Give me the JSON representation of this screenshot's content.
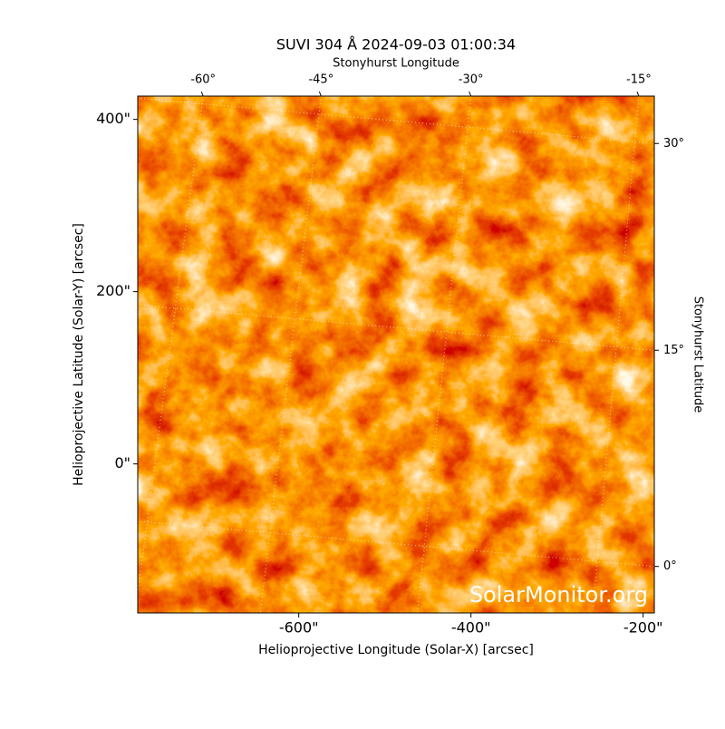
{
  "chart_data": {
    "type": "image",
    "title": "SUVI 304 Å 2024-09-03 01:00:34",
    "x_label": "Helioprojective Longitude (Solar-X) [arcsec]",
    "y_label": "Helioprojective Latitude (Solar-Y) [arcsec]",
    "x2_label": "Stonyhurst Longitude",
    "y2_label": "Stonyhurst Latitude",
    "watermark": "SolarMonitor.org",
    "xlim": [
      -787,
      -187
    ],
    "ylim": [
      -173,
      427
    ],
    "xticks": [
      {
        "value": -600,
        "label": "-600\""
      },
      {
        "value": -400,
        "label": "-400\""
      },
      {
        "value": -200,
        "label": "-200\""
      }
    ],
    "yticks": [
      {
        "value": 0,
        "label": "0\""
      },
      {
        "value": 200,
        "label": "200\""
      },
      {
        "value": 400,
        "label": "400\""
      }
    ],
    "x2ticks": [
      {
        "value": -711,
        "label": "-60°"
      },
      {
        "value": -574,
        "label": "-45°"
      },
      {
        "value": -400,
        "label": "-30°"
      },
      {
        "value": -205,
        "label": "-15°"
      }
    ],
    "y2ticks": [
      {
        "value": 372,
        "label": "30°"
      },
      {
        "value": 132,
        "label": "15°"
      },
      {
        "value": -119,
        "label": "0°"
      }
    ]
  }
}
